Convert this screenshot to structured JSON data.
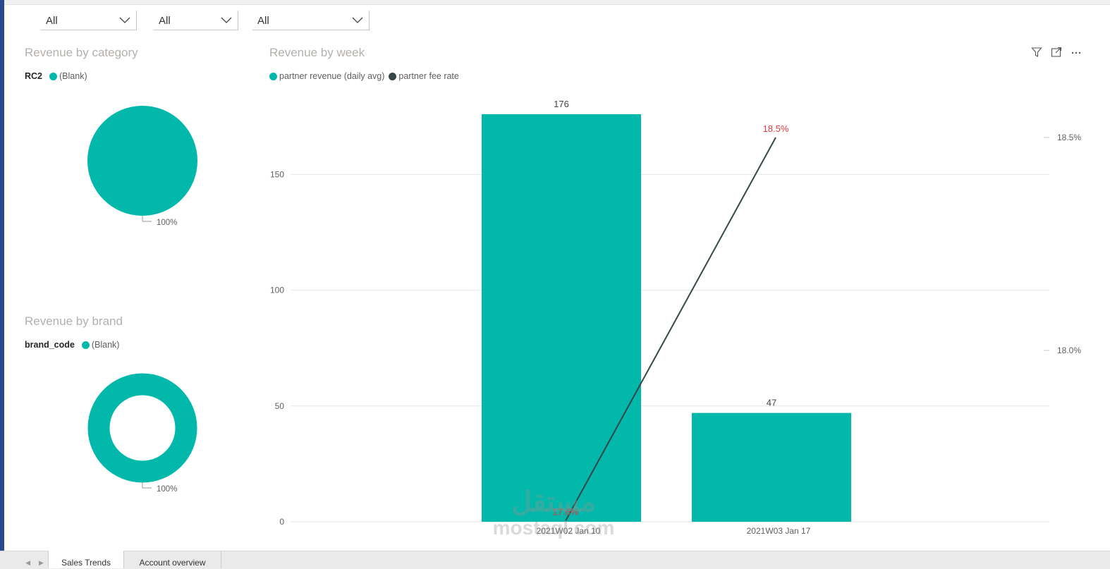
{
  "filters": [
    {
      "value": "All"
    },
    {
      "value": "All"
    },
    {
      "value": "All"
    }
  ],
  "category_panel": {
    "title": "Revenue by category",
    "legend_label": "RC2",
    "legend_item": "(Blank)",
    "pct_label": "100%"
  },
  "brand_panel": {
    "title": "Revenue by brand",
    "legend_label": "brand_code",
    "legend_item": "(Blank)",
    "pct_label": "100%"
  },
  "week_panel": {
    "title": "Revenue by week",
    "legend": [
      {
        "name": "partner revenue (daily avg)",
        "color": "#01b8aa"
      },
      {
        "name": "partner fee rate",
        "color": "#374649"
      }
    ],
    "header_icons": [
      "filter-icon",
      "focus-mode-icon",
      "more-options-icon"
    ]
  },
  "chart_data": [
    {
      "type": "pie",
      "slices": [
        {
          "label": "(Blank)",
          "value": 100
        }
      ],
      "title": "Revenue by category",
      "legend_title": "RC2"
    },
    {
      "type": "pie",
      "variant": "donut",
      "slices": [
        {
          "label": "(Blank)",
          "value": 100
        }
      ],
      "title": "Revenue by brand",
      "legend_title": "brand_code"
    },
    {
      "type": "bar",
      "title": "Revenue by week",
      "categories": [
        "2021W02 Jan 10",
        "2021W03 Jan 17"
      ],
      "series": [
        {
          "name": "partner revenue (daily avg)",
          "values": [
            176,
            47
          ],
          "color": "#01b8aa",
          "axis": "left",
          "labels": [
            "176",
            "47"
          ]
        },
        {
          "name": "partner fee rate",
          "type": "line",
          "values": [
            17.6,
            18.5
          ],
          "color": "#374649",
          "axis": "right",
          "labels": [
            "17.6%",
            "18.5%"
          ]
        }
      ],
      "y_left": {
        "ticks": [
          0,
          50,
          100,
          150
        ],
        "ylim": [
          0,
          180
        ]
      },
      "y_right": {
        "ticks": [
          18.0,
          18.5
        ],
        "tick_labels": [
          "18.0%",
          "18.5%"
        ]
      },
      "grid": true,
      "legend_position": "top-left"
    }
  ],
  "tabs": [
    {
      "label": "Sales Trends",
      "active": true
    },
    {
      "label": "Account overview",
      "active": false
    }
  ],
  "watermark": {
    "arabic": "مستقل",
    "latin": "mostaql.com"
  },
  "colors": {
    "teal": "#01b8aa",
    "dark": "#374649",
    "label_red": "#e0393e"
  }
}
